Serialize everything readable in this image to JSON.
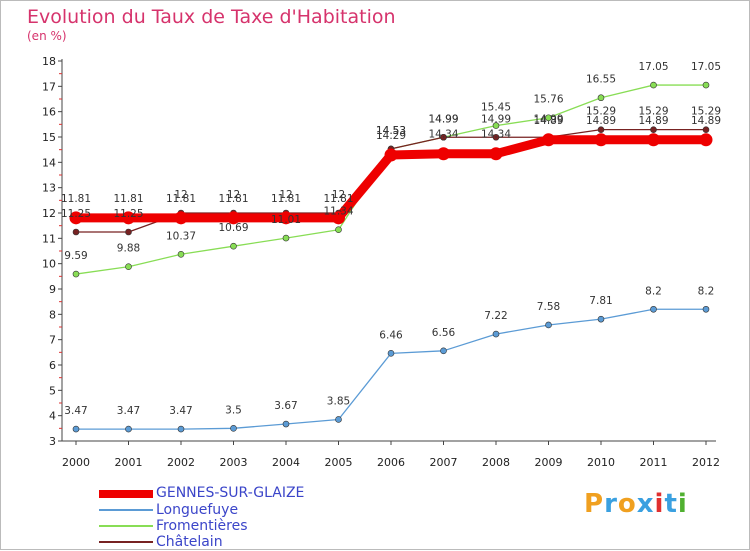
{
  "chart_data": {
    "type": "line",
    "title": "Evolution du Taux de Taxe d'Habitation",
    "ylabel": "(en %)",
    "categories": [
      "2000",
      "2001",
      "2002",
      "2003",
      "2004",
      "2005",
      "2006",
      "2007",
      "2008",
      "2009",
      "2010",
      "2011",
      "2012"
    ],
    "y_ticks": [
      "3",
      "4",
      "5",
      "6",
      "7",
      "8",
      "9",
      "10",
      "11",
      "12",
      "13",
      "14",
      "15",
      "16",
      "17",
      "18"
    ],
    "ylim": [
      3,
      18
    ],
    "grid": false,
    "series": [
      {
        "name": "GENNES-SUR-GLAIZE",
        "color": "#ee0000",
        "emphasis": true,
        "values": [
          11.81,
          11.81,
          11.81,
          11.81,
          11.81,
          11.81,
          14.29,
          14.34,
          14.34,
          14.89,
          14.89,
          14.89,
          14.89
        ],
        "labels": [
          "11.81",
          "11.81",
          "11.81",
          "11.81",
          "11.81",
          "11.81",
          "14.29",
          "14.34",
          "14.34",
          "14.89",
          "14.89",
          "14.89",
          "14.89"
        ]
      },
      {
        "name": "Longuefuye",
        "color": "#5b9bd5",
        "values": [
          3.47,
          3.47,
          3.47,
          3.5,
          3.67,
          3.85,
          6.46,
          6.56,
          7.22,
          7.58,
          7.81,
          8.2,
          8.2
        ],
        "labels": [
          "3.47",
          "3.47",
          "3.47",
          "3.5",
          "3.67",
          "3.85",
          "6.46",
          "6.56",
          "7.22",
          "7.58",
          "7.81",
          "8.2",
          "8.2"
        ]
      },
      {
        "name": "Fromentières",
        "color": "#88dd55",
        "values": [
          9.59,
          9.88,
          10.37,
          10.69,
          11.01,
          11.34,
          14.53,
          14.99,
          15.45,
          15.76,
          16.55,
          17.05,
          17.05
        ],
        "labels": [
          "9.59",
          "9.88",
          "10.37",
          "10.69",
          "11.01",
          "11.34",
          "14.53",
          "14.99",
          "15.45",
          "15.76",
          "16.55",
          "17.05",
          "17.05"
        ]
      },
      {
        "name": "Châtelain",
        "color": "#772222",
        "values": [
          11.25,
          11.25,
          12,
          12,
          12,
          12,
          14.53,
          14.99,
          14.99,
          14.99,
          15.29,
          15.29,
          15.29
        ],
        "labels": [
          "11.25",
          "11.25",
          "12",
          "12",
          "12",
          "12",
          "14.53",
          "14.99",
          "14.99",
          "14.99",
          "15.29",
          "15.29",
          "15.29"
        ]
      }
    ]
  },
  "brand": {
    "letters": [
      "P",
      "r",
      "o",
      "x",
      "i",
      "t",
      "i"
    ],
    "colors": [
      "#f0a020",
      "#3aa0e0",
      "#f0a020",
      "#3aa0e0",
      "#e03030",
      "#3aa0e0",
      "#50b030"
    ]
  }
}
